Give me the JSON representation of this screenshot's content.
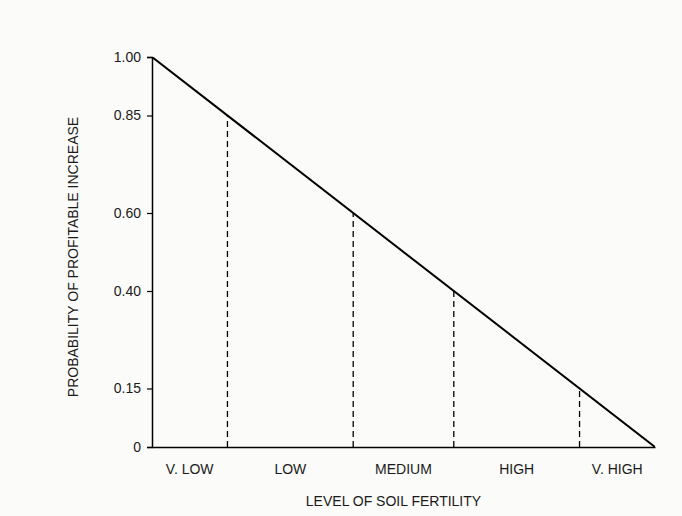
{
  "chart_data": {
    "type": "line",
    "y_label": "PROBABILITY OF PROFITABLE INCREASE",
    "x_label": "LEVEL OF SOIL FERTILITY",
    "categories": [
      "V. LOW",
      "LOW",
      "MEDIUM",
      "HIGH",
      "V. HIGH"
    ],
    "series": [
      {
        "type": "line",
        "x": [
          0,
          1
        ],
        "values": [
          1.0,
          0
        ],
        "color": "#000000",
        "line_style": "solid"
      },
      {
        "type": "drop_line",
        "x": [
          0.15,
          0.4,
          0.6,
          0.85
        ],
        "values": [
          0.85,
          0.6,
          0.4,
          0.15
        ],
        "color": "#000000",
        "line_style": "dashed"
      }
    ],
    "xlim": [
      0,
      1
    ],
    "ylim": [
      0,
      1.0
    ],
    "yticks": [
      0,
      0.15,
      {
        "value": 0.4,
        "label": "0.40"
      },
      {
        "value": 0.6,
        "label": "0.60"
      },
      0.85,
      {
        "value": 1.0,
        "label": "1.00"
      }
    ],
    "grid": false,
    "tick_labels": "y"
  }
}
